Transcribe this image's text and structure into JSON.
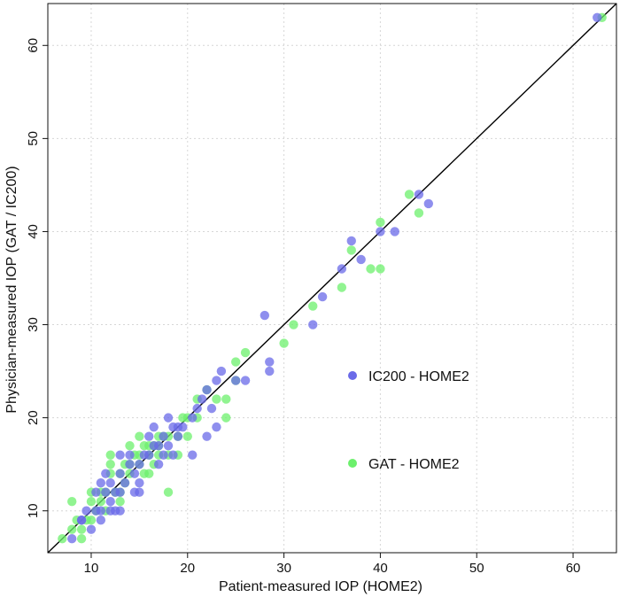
{
  "chart_data": {
    "type": "scatter",
    "title": "",
    "xlabel": "Patient-measured IOP (HOME2)",
    "ylabel": "Physician-measured IOP (GAT / IC200)",
    "xlim": [
      5.5,
      64.5
    ],
    "ylim": [
      5.5,
      64.5
    ],
    "xticks": [
      10,
      20,
      30,
      40,
      50,
      60
    ],
    "yticks": [
      10,
      20,
      30,
      40,
      50,
      60
    ],
    "grid": true,
    "reference_line": {
      "type": "identity",
      "label": ""
    },
    "legend_position": "right-center",
    "colors": {
      "IC200 - HOME2": "#6a6ae8",
      "GAT - HOME2": "#6cf06c"
    },
    "series": [
      {
        "name": "IC200 - HOME2",
        "color": "#6a6ae8",
        "points": [
          [
            62.5,
            63
          ],
          [
            44,
            44
          ],
          [
            45,
            43
          ],
          [
            40,
            40
          ],
          [
            41.5,
            40
          ],
          [
            37,
            39
          ],
          [
            38,
            37
          ],
          [
            36,
            36
          ],
          [
            34,
            33
          ],
          [
            33,
            30
          ],
          [
            28,
            31
          ],
          [
            28.5,
            26
          ],
          [
            28.5,
            25
          ],
          [
            26,
            24
          ],
          [
            25,
            24
          ],
          [
            23.5,
            25
          ],
          [
            23,
            24
          ],
          [
            22,
            23
          ],
          [
            21.5,
            22
          ],
          [
            22.5,
            21
          ],
          [
            21,
            21
          ],
          [
            20.5,
            20
          ],
          [
            23,
            19
          ],
          [
            22,
            18
          ],
          [
            19.5,
            19
          ],
          [
            18.5,
            19
          ],
          [
            18,
            20
          ],
          [
            19,
            18
          ],
          [
            17.5,
            18
          ],
          [
            17,
            17
          ],
          [
            16.5,
            19
          ],
          [
            16,
            16
          ],
          [
            16,
            18
          ],
          [
            15.5,
            16
          ],
          [
            15,
            15
          ],
          [
            15,
            13
          ],
          [
            14.5,
            14
          ],
          [
            14,
            16
          ],
          [
            14,
            15
          ],
          [
            13.5,
            13
          ],
          [
            13,
            16
          ],
          [
            13,
            14
          ],
          [
            12.5,
            12
          ],
          [
            12,
            13
          ],
          [
            12,
            11
          ],
          [
            11.5,
            12
          ],
          [
            11,
            10
          ],
          [
            10.5,
            12
          ],
          [
            10.5,
            10
          ],
          [
            9.5,
            10
          ],
          [
            9,
            9
          ],
          [
            8,
            7
          ],
          [
            9,
            9
          ],
          [
            10,
            8
          ],
          [
            11,
            9
          ],
          [
            12,
            10
          ],
          [
            13,
            10
          ],
          [
            15,
            12
          ],
          [
            16.5,
            17
          ],
          [
            17.5,
            16
          ],
          [
            18,
            17
          ],
          [
            18.5,
            16
          ],
          [
            20.5,
            16
          ],
          [
            19,
            19
          ],
          [
            14.5,
            12
          ],
          [
            13,
            12
          ],
          [
            11.5,
            14
          ],
          [
            12.5,
            10
          ],
          [
            11,
            13
          ],
          [
            17,
            15
          ]
        ]
      },
      {
        "name": "GAT - HOME2",
        "color": "#6cf06c",
        "points": [
          [
            63,
            63
          ],
          [
            43,
            44
          ],
          [
            44,
            42
          ],
          [
            40,
            41
          ],
          [
            40,
            36
          ],
          [
            39,
            36
          ],
          [
            37,
            38
          ],
          [
            36,
            34
          ],
          [
            33,
            32
          ],
          [
            31,
            30
          ],
          [
            30,
            28
          ],
          [
            26,
            27
          ],
          [
            25,
            26
          ],
          [
            25,
            24
          ],
          [
            24,
            22
          ],
          [
            24,
            20
          ],
          [
            23,
            22
          ],
          [
            22,
            23
          ],
          [
            21,
            22
          ],
          [
            21,
            20
          ],
          [
            20,
            20
          ],
          [
            19.5,
            20
          ],
          [
            19,
            18
          ],
          [
            20,
            18
          ],
          [
            18,
            18
          ],
          [
            18,
            16
          ],
          [
            17.5,
            18
          ],
          [
            17,
            18
          ],
          [
            17,
            16
          ],
          [
            16.5,
            17
          ],
          [
            16,
            16
          ],
          [
            15.5,
            17
          ],
          [
            15,
            16
          ],
          [
            15,
            15
          ],
          [
            14.5,
            16
          ],
          [
            14,
            15
          ],
          [
            14,
            14
          ],
          [
            13.5,
            13
          ],
          [
            13,
            14
          ],
          [
            13,
            12
          ],
          [
            12.5,
            12
          ],
          [
            12,
            15
          ],
          [
            12,
            14
          ],
          [
            11.5,
            12
          ],
          [
            11,
            12
          ],
          [
            11,
            11
          ],
          [
            10.5,
            10
          ],
          [
            10,
            12
          ],
          [
            10,
            11
          ],
          [
            9.5,
            9
          ],
          [
            9,
            8
          ],
          [
            9,
            7
          ],
          [
            8.5,
            9
          ],
          [
            8,
            11
          ],
          [
            7,
            7
          ],
          [
            8,
            8
          ],
          [
            10,
            9
          ],
          [
            11.5,
            10
          ],
          [
            13,
            11
          ],
          [
            16,
            14
          ],
          [
            18,
            12
          ],
          [
            19,
            16
          ],
          [
            15.5,
            14
          ],
          [
            14,
            17
          ],
          [
            16.5,
            15
          ],
          [
            12,
            16
          ],
          [
            17,
            17
          ],
          [
            15,
            18
          ],
          [
            13.5,
            15
          ],
          [
            16,
            17
          ]
        ]
      }
    ]
  }
}
